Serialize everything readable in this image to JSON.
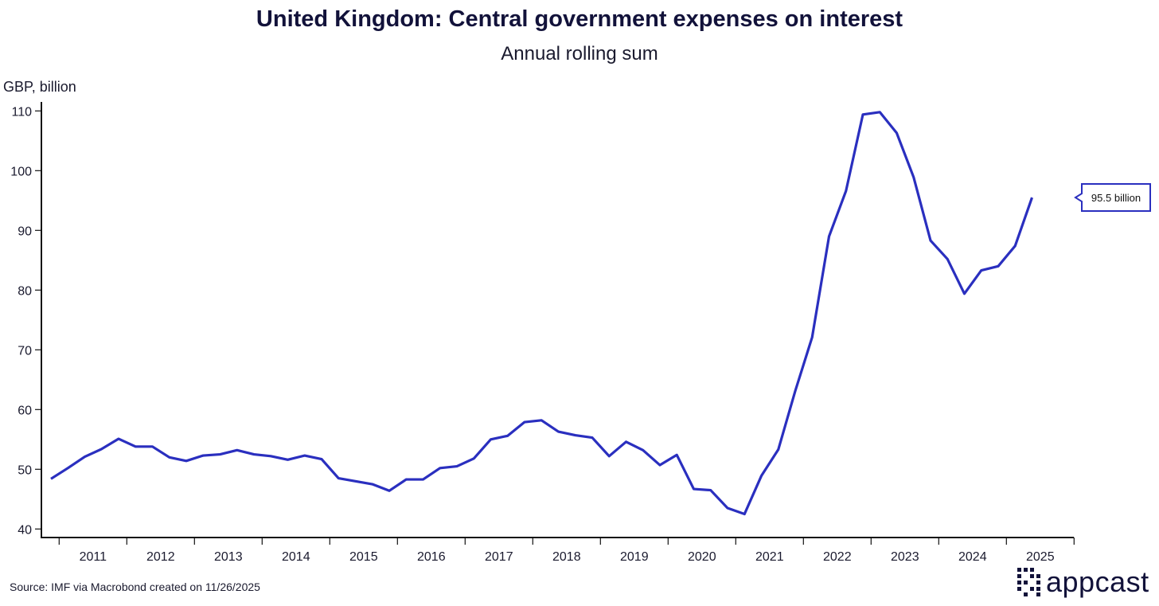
{
  "chart_data": {
    "type": "line",
    "title": "United Kingdom: Central government expenses on interest",
    "subtitle": "Annual rolling sum",
    "ylabel": "GBP, billion",
    "xlabel": "",
    "ylim": [
      40,
      110
    ],
    "yticks": [
      40,
      50,
      60,
      70,
      80,
      90,
      100,
      110
    ],
    "xtick_labels": [
      "2011",
      "2012",
      "2013",
      "2014",
      "2015",
      "2016",
      "2017",
      "2018",
      "2019",
      "2020",
      "2021",
      "2022",
      "2023",
      "2024",
      "2025"
    ],
    "grid": false,
    "series": [
      {
        "name": "Central government expenses on interest",
        "color": "#2a2fbf",
        "start": "2010 Q4",
        "frequency": "quarterly",
        "values": [
          48.4,
          50.2,
          52.1,
          53.4,
          55.1,
          53.8,
          53.8,
          52.0,
          51.4,
          52.3,
          52.5,
          53.2,
          52.5,
          52.2,
          51.6,
          52.3,
          51.7,
          48.5,
          48.0,
          47.5,
          46.4,
          48.3,
          48.3,
          50.2,
          50.5,
          51.8,
          55.0,
          55.6,
          57.9,
          58.2,
          56.3,
          55.7,
          55.3,
          52.2,
          54.6,
          53.2,
          50.7,
          52.4,
          46.7,
          46.5,
          43.5,
          42.5,
          48.9,
          53.3,
          63.1,
          72.1,
          89.0,
          96.6,
          109.4,
          109.8,
          106.3,
          98.9,
          88.3,
          85.2,
          79.4,
          83.3,
          84.0,
          87.4,
          95.5
        ]
      }
    ],
    "annotation": "95.5 billion"
  },
  "footer": {
    "source": "Source: IMF via Macrobond created on 11/26/2025",
    "logo": "appcast"
  }
}
